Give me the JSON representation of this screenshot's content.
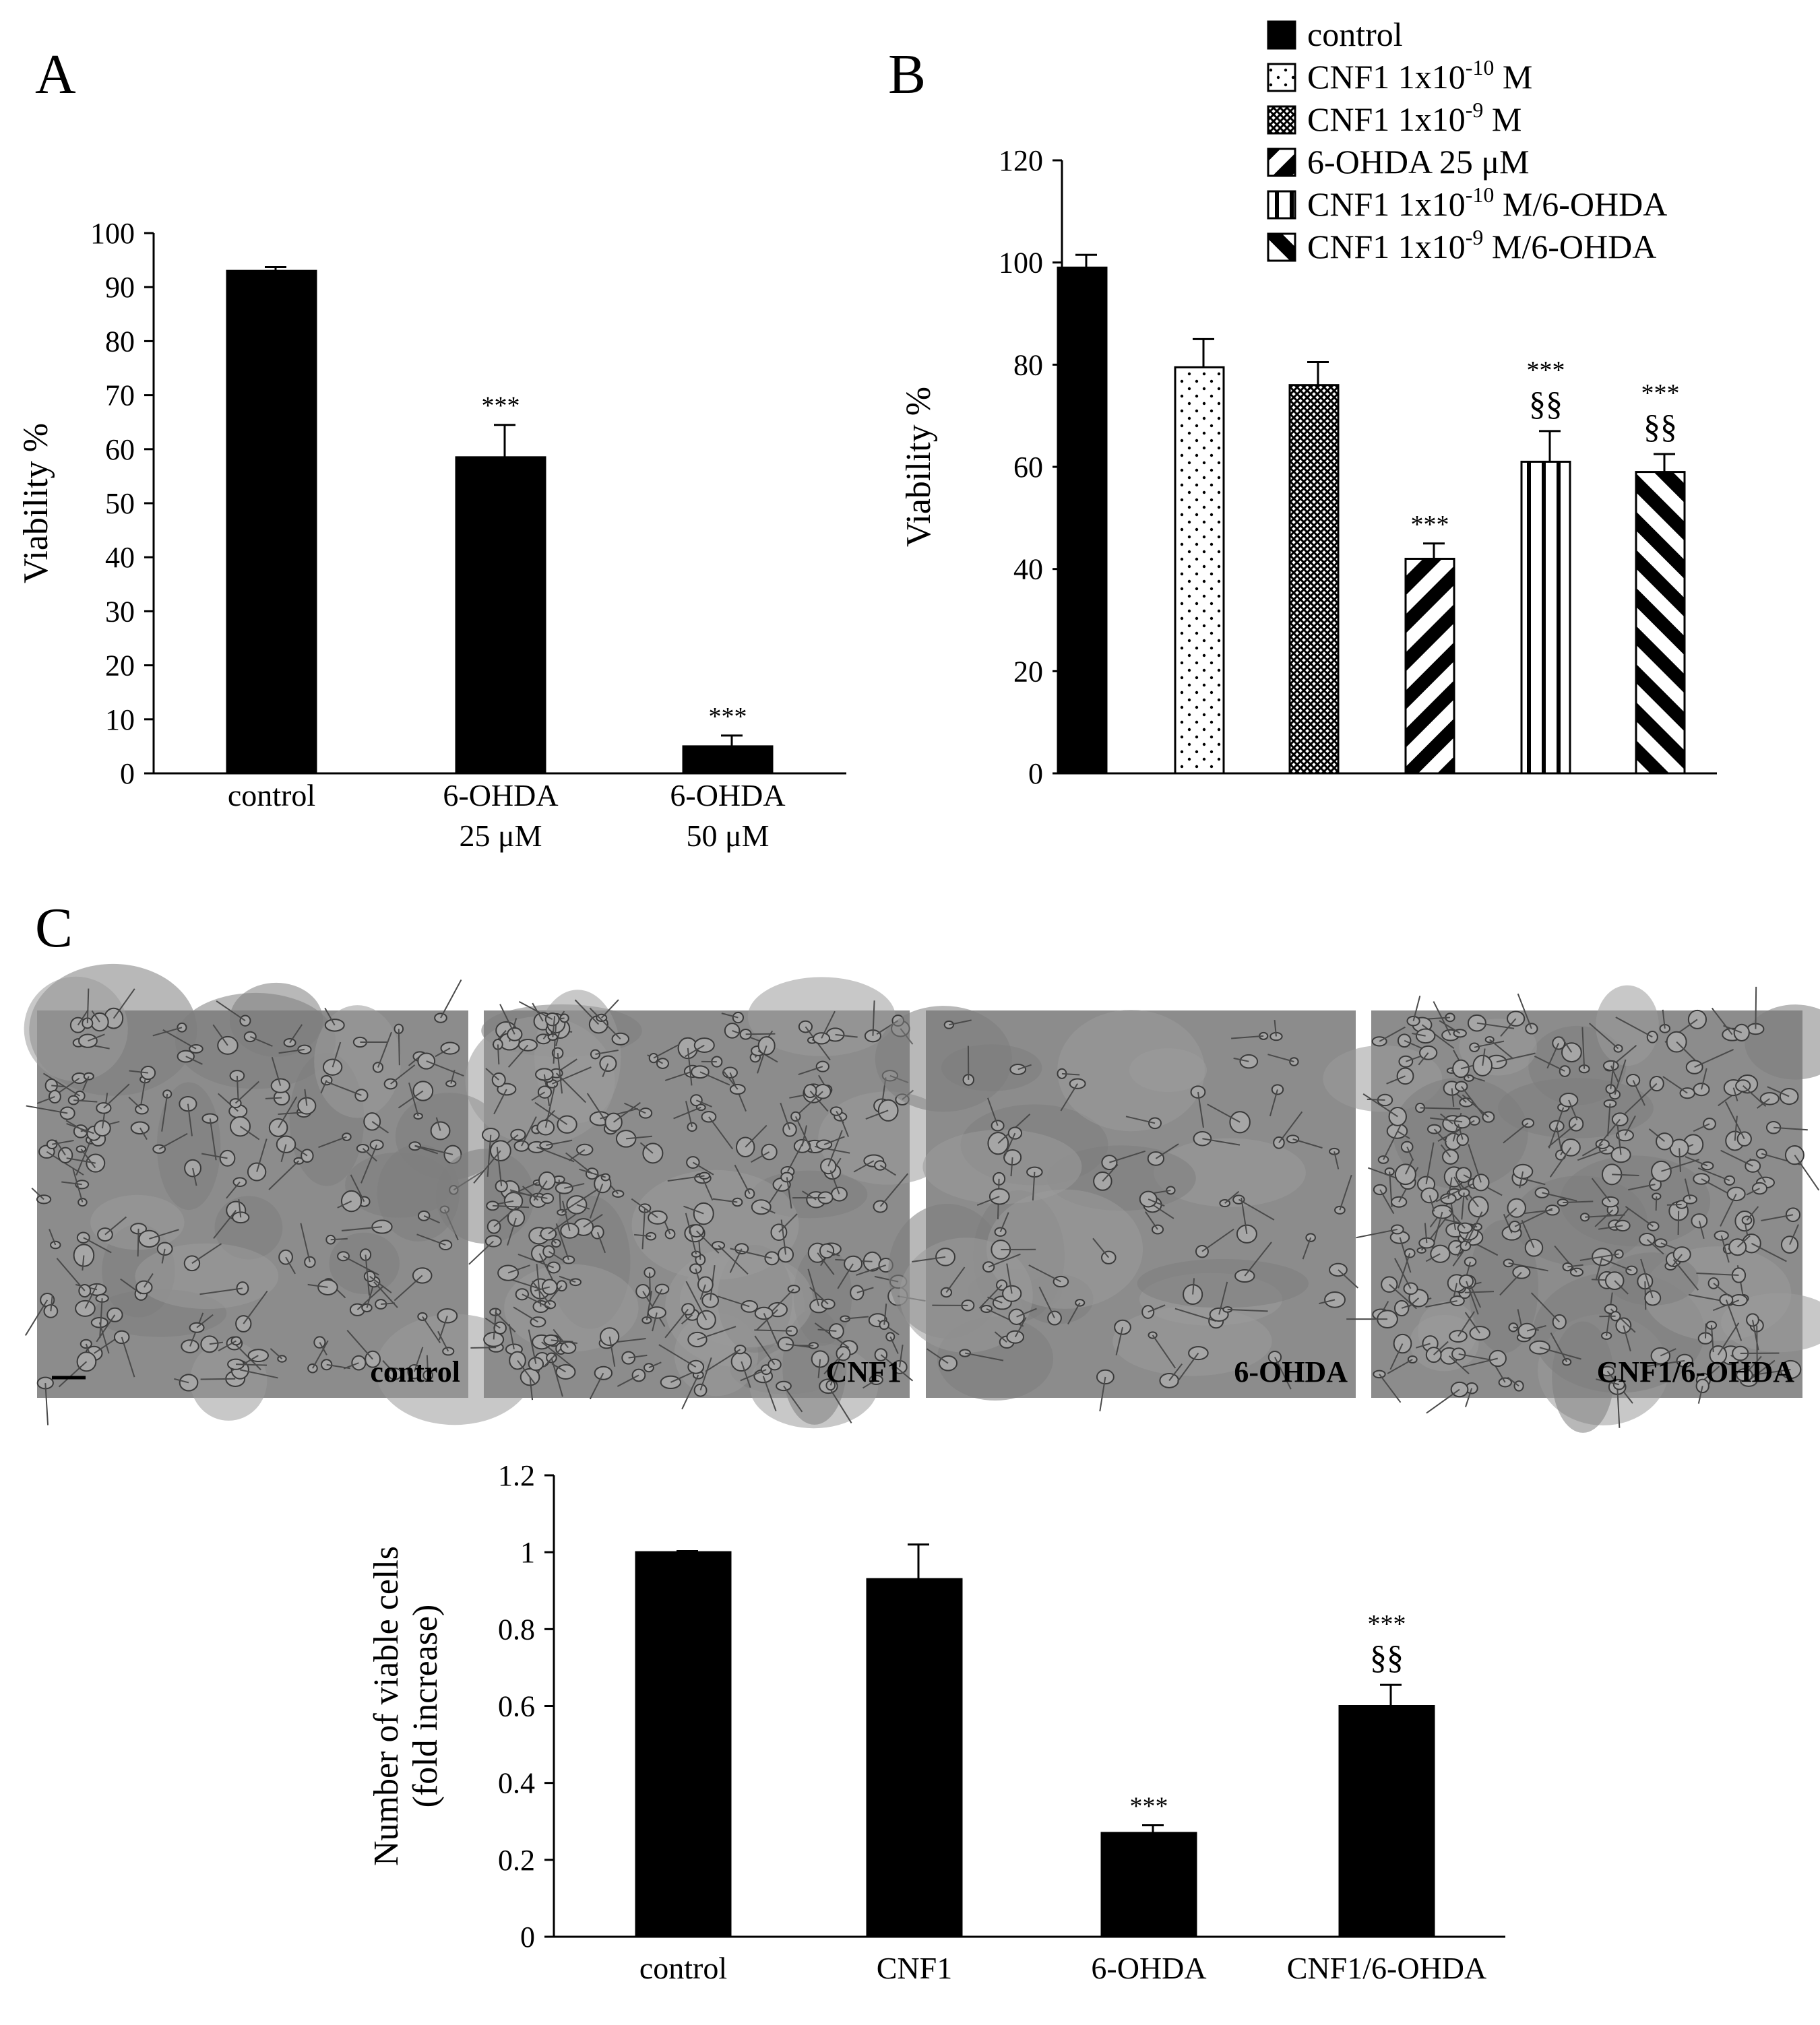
{
  "panel_labels": [
    "A",
    "B",
    "C"
  ],
  "chart_data": [
    {
      "panel": "A",
      "type": "bar",
      "ylabel": "Viability %",
      "ylim": [
        0,
        100
      ],
      "yticks": [
        0,
        10,
        20,
        30,
        40,
        50,
        60,
        70,
        80,
        90,
        100
      ],
      "categories": [
        [
          "control"
        ],
        [
          "6-OHDA",
          "25 μM"
        ],
        [
          "6-OHDA",
          "50 μM"
        ]
      ],
      "values": [
        93,
        58.5,
        5
      ],
      "errors": [
        0.7,
        6,
        2
      ],
      "annotations": [
        [],
        [
          "***"
        ],
        [
          "***"
        ]
      ],
      "grid": false
    },
    {
      "panel": "B",
      "type": "bar",
      "ylabel": "Viability %",
      "ylim": [
        0,
        120
      ],
      "yticks": [
        0,
        20,
        40,
        60,
        80,
        100,
        120
      ],
      "legend_position": "top-right",
      "series": [
        {
          "name_parts": [
            "control",
            "",
            ""
          ],
          "value": 99,
          "error": 2.5,
          "pattern": "solid",
          "annotations": []
        },
        {
          "name_parts": [
            "CNF1 1x10",
            "-10",
            " M"
          ],
          "value": 79.5,
          "error": 5.5,
          "pattern": "dots",
          "annotations": []
        },
        {
          "name_parts": [
            "CNF1 1x10",
            "-9",
            " M"
          ],
          "value": 76,
          "error": 4.5,
          "pattern": "crosshatch",
          "annotations": []
        },
        {
          "name_parts": [
            "6-OHDA 25 μM",
            "",
            ""
          ],
          "value": 42,
          "error": 3,
          "pattern": "diag-down",
          "annotations": [
            "***"
          ]
        },
        {
          "name_parts": [
            "CNF1 1x10",
            "-10",
            " M/6-OHDA"
          ],
          "value": 61,
          "error": 6,
          "pattern": "vertical",
          "annotations": [
            "***",
            "§§"
          ]
        },
        {
          "name_parts": [
            "CNF1 1x10",
            "-9",
            " M/6-OHDA"
          ],
          "value": 59,
          "error": 3.5,
          "pattern": "diag-up",
          "annotations": [
            "***",
            "§§"
          ]
        }
      ],
      "grid": false
    },
    {
      "panel": "C",
      "type": "bar",
      "ylabel_lines": [
        "Number of viable cells",
        "(fold increase)"
      ],
      "ylim": [
        0,
        1.2
      ],
      "yticks": [
        "0",
        "0.2",
        "0.4",
        "0.6",
        "0.8",
        "1",
        "1.2"
      ],
      "categories": [
        "control",
        "CNF1",
        "6-OHDA",
        "CNF1/6-OHDA"
      ],
      "values": [
        1.0,
        0.93,
        0.27,
        0.6
      ],
      "errors": [
        0.003,
        0.09,
        0.02,
        0.055
      ],
      "annotations": [
        [],
        [],
        [
          "***"
        ],
        [
          "***",
          "§§"
        ]
      ],
      "grid": false
    }
  ],
  "micrographs": [
    {
      "label": "control",
      "density": "medium"
    },
    {
      "label": "CNF1",
      "density": "high"
    },
    {
      "label": "6-OHDA",
      "density": "low"
    },
    {
      "label": "CNF1/6-OHDA",
      "density": "high"
    }
  ],
  "colors": {
    "bar": "#000000",
    "axis": "#000000",
    "micrograph_bg": "#8c8c8c"
  }
}
